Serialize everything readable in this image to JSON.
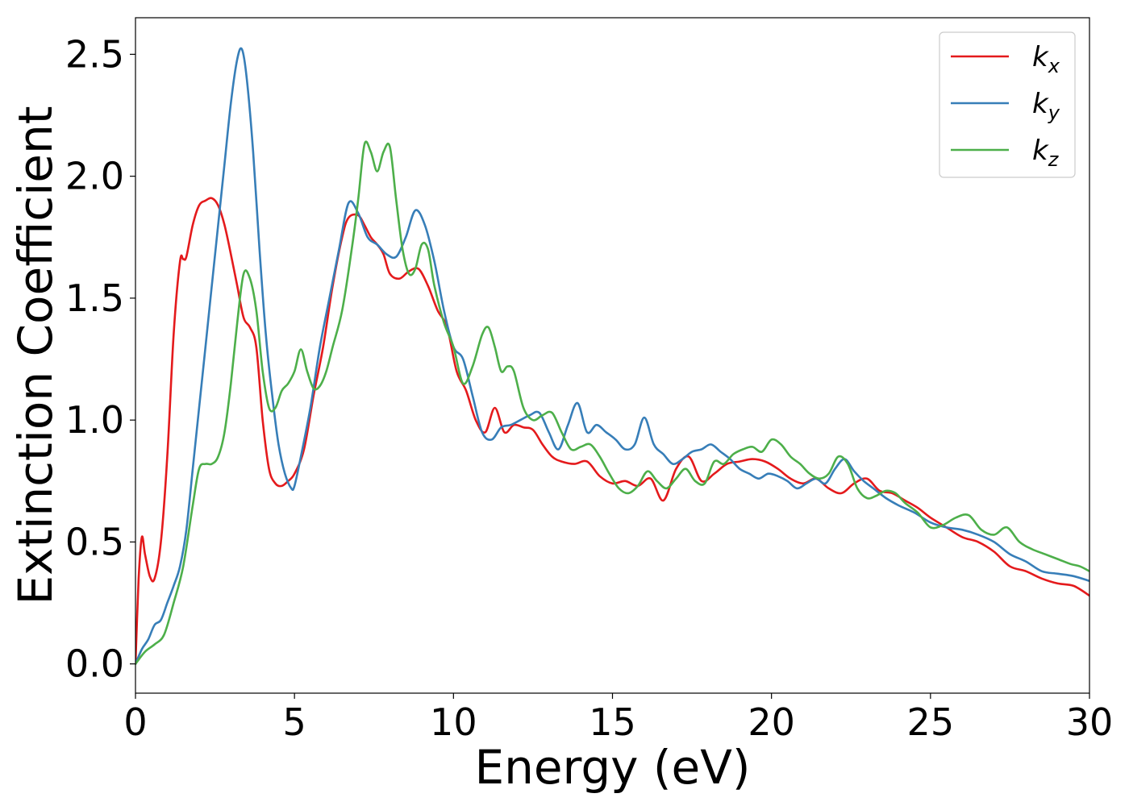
{
  "chart_data": {
    "type": "line",
    "title": "",
    "xlabel": "Energy (eV)",
    "ylabel": "Extinction Coefficient",
    "xlim": [
      0,
      30
    ],
    "ylim": [
      -0.12,
      2.65
    ],
    "xticks": [
      0,
      5,
      10,
      15,
      20,
      25,
      30
    ],
    "yticks": [
      0.0,
      0.5,
      1.0,
      1.5,
      2.0,
      2.5
    ],
    "xtick_labels": [
      "0",
      "5",
      "10",
      "15",
      "20",
      "25",
      "30"
    ],
    "ytick_labels": [
      "0.0",
      "0.5",
      "1.0",
      "1.5",
      "2.0",
      "2.5"
    ],
    "grid": false,
    "legend_position": "top-right",
    "series": [
      {
        "name": "k_x",
        "label_base": "k",
        "label_sub": "x",
        "color": "#e41a1c",
        "x": [
          0,
          0.1,
          0.2,
          0.3,
          0.45,
          0.6,
          0.8,
          1.0,
          1.2,
          1.4,
          1.5,
          1.6,
          1.8,
          2.0,
          2.2,
          2.4,
          2.6,
          2.8,
          3.0,
          3.2,
          3.4,
          3.6,
          3.8,
          4.0,
          4.2,
          4.4,
          4.6,
          4.8,
          5.0,
          5.3,
          5.6,
          5.9,
          6.2,
          6.5,
          6.7,
          7.0,
          7.2,
          7.4,
          7.6,
          7.8,
          8.0,
          8.3,
          8.6,
          8.9,
          9.2,
          9.5,
          9.8,
          10.1,
          10.4,
          10.7,
          11.0,
          11.3,
          11.6,
          11.9,
          12.2,
          12.5,
          12.8,
          13.1,
          13.4,
          13.8,
          14.2,
          14.6,
          15.0,
          15.4,
          15.8,
          16.2,
          16.6,
          17.0,
          17.4,
          17.8,
          18.2,
          18.6,
          19.0,
          19.4,
          19.8,
          20.2,
          20.6,
          21.0,
          21.4,
          21.8,
          22.2,
          22.6,
          23.0,
          23.4,
          23.8,
          24.2,
          24.6,
          25.0,
          25.5,
          26.0,
          26.5,
          27.0,
          27.5,
          28.0,
          28.5,
          29.0,
          29.5,
          30.0
        ],
        "y": [
          0.0,
          0.35,
          0.52,
          0.45,
          0.36,
          0.35,
          0.5,
          0.85,
          1.35,
          1.65,
          1.66,
          1.67,
          1.8,
          1.88,
          1.9,
          1.91,
          1.88,
          1.8,
          1.68,
          1.55,
          1.42,
          1.38,
          1.3,
          1.0,
          0.8,
          0.74,
          0.73,
          0.75,
          0.78,
          0.88,
          1.1,
          1.3,
          1.55,
          1.75,
          1.83,
          1.84,
          1.8,
          1.75,
          1.72,
          1.68,
          1.6,
          1.58,
          1.61,
          1.62,
          1.55,
          1.45,
          1.38,
          1.2,
          1.12,
          1.0,
          0.95,
          1.05,
          0.95,
          0.98,
          0.97,
          0.96,
          0.9,
          0.85,
          0.83,
          0.82,
          0.83,
          0.77,
          0.74,
          0.75,
          0.73,
          0.76,
          0.67,
          0.8,
          0.85,
          0.75,
          0.78,
          0.82,
          0.83,
          0.84,
          0.83,
          0.8,
          0.76,
          0.74,
          0.76,
          0.72,
          0.7,
          0.74,
          0.76,
          0.71,
          0.7,
          0.67,
          0.64,
          0.6,
          0.56,
          0.52,
          0.5,
          0.46,
          0.4,
          0.38,
          0.35,
          0.33,
          0.32,
          0.28
        ]
      },
      {
        "name": "k_y",
        "label_base": "k",
        "label_sub": "y",
        "color": "#377eb8",
        "x": [
          0,
          0.2,
          0.4,
          0.6,
          0.8,
          1.0,
          1.2,
          1.4,
          1.6,
          1.8,
          2.0,
          2.2,
          2.4,
          2.6,
          2.8,
          3.0,
          3.2,
          3.35,
          3.5,
          3.7,
          3.9,
          4.1,
          4.3,
          4.5,
          4.7,
          4.9,
          5.0,
          5.2,
          5.5,
          5.8,
          6.1,
          6.4,
          6.7,
          7.0,
          7.3,
          7.6,
          7.9,
          8.2,
          8.5,
          8.8,
          9.1,
          9.4,
          9.7,
          10.0,
          10.3,
          10.6,
          10.9,
          11.2,
          11.5,
          11.8,
          12.1,
          12.4,
          12.7,
          13.0,
          13.3,
          13.6,
          13.9,
          14.2,
          14.5,
          14.8,
          15.1,
          15.4,
          15.7,
          16.0,
          16.3,
          16.6,
          16.9,
          17.2,
          17.5,
          17.8,
          18.1,
          18.4,
          18.7,
          19.0,
          19.3,
          19.6,
          19.9,
          20.2,
          20.5,
          20.8,
          21.1,
          21.4,
          21.7,
          22.0,
          22.3,
          22.6,
          22.9,
          23.2,
          23.6,
          24.0,
          24.5,
          25.0,
          25.5,
          26.0,
          26.5,
          27.0,
          27.5,
          28.0,
          28.5,
          29.0,
          29.5,
          30.0
        ],
        "y": [
          0.0,
          0.06,
          0.1,
          0.16,
          0.18,
          0.25,
          0.32,
          0.4,
          0.55,
          0.8,
          1.05,
          1.3,
          1.55,
          1.8,
          2.05,
          2.3,
          2.48,
          2.52,
          2.4,
          2.1,
          1.7,
          1.35,
          1.1,
          0.9,
          0.78,
          0.72,
          0.73,
          0.85,
          1.05,
          1.3,
          1.5,
          1.7,
          1.89,
          1.85,
          1.75,
          1.72,
          1.68,
          1.67,
          1.75,
          1.86,
          1.8,
          1.65,
          1.45,
          1.3,
          1.25,
          1.1,
          0.95,
          0.92,
          0.97,
          0.98,
          1.0,
          1.02,
          1.03,
          0.95,
          0.88,
          0.98,
          1.07,
          0.95,
          0.98,
          0.95,
          0.92,
          0.88,
          0.9,
          1.01,
          0.9,
          0.86,
          0.82,
          0.84,
          0.87,
          0.88,
          0.9,
          0.87,
          0.84,
          0.8,
          0.78,
          0.76,
          0.78,
          0.77,
          0.75,
          0.72,
          0.74,
          0.76,
          0.74,
          0.8,
          0.84,
          0.79,
          0.75,
          0.72,
          0.68,
          0.65,
          0.62,
          0.58,
          0.56,
          0.55,
          0.53,
          0.5,
          0.45,
          0.42,
          0.38,
          0.37,
          0.36,
          0.34
        ]
      },
      {
        "name": "k_z",
        "label_base": "k",
        "label_sub": "z",
        "color": "#4daf4a",
        "x": [
          0,
          0.3,
          0.6,
          0.9,
          1.2,
          1.5,
          1.8,
          2.0,
          2.2,
          2.4,
          2.6,
          2.8,
          3.0,
          3.2,
          3.4,
          3.6,
          3.8,
          4.0,
          4.2,
          4.4,
          4.6,
          4.8,
          5.0,
          5.2,
          5.4,
          5.6,
          5.8,
          6.0,
          6.2,
          6.5,
          6.8,
          7.0,
          7.2,
          7.4,
          7.6,
          7.8,
          8.0,
          8.2,
          8.4,
          8.6,
          8.8,
          9.0,
          9.2,
          9.4,
          9.7,
          10.0,
          10.3,
          10.6,
          10.9,
          11.1,
          11.3,
          11.5,
          11.7,
          11.9,
          12.2,
          12.5,
          12.8,
          13.1,
          13.4,
          13.7,
          14.0,
          14.3,
          14.6,
          14.9,
          15.2,
          15.5,
          15.8,
          16.1,
          16.4,
          16.7,
          17.0,
          17.3,
          17.6,
          17.9,
          18.2,
          18.5,
          18.8,
          19.1,
          19.4,
          19.7,
          20.0,
          20.3,
          20.6,
          20.9,
          21.2,
          21.5,
          21.8,
          22.1,
          22.4,
          22.7,
          23.0,
          23.3,
          23.6,
          23.9,
          24.2,
          24.6,
          25.0,
          25.4,
          25.8,
          26.2,
          26.6,
          27.0,
          27.4,
          27.8,
          28.2,
          28.6,
          29.0,
          29.4,
          29.7,
          30.0
        ],
        "y": [
          0.0,
          0.05,
          0.08,
          0.12,
          0.25,
          0.4,
          0.65,
          0.8,
          0.82,
          0.82,
          0.85,
          0.95,
          1.15,
          1.4,
          1.6,
          1.58,
          1.45,
          1.2,
          1.05,
          1.05,
          1.12,
          1.15,
          1.2,
          1.29,
          1.2,
          1.13,
          1.14,
          1.2,
          1.3,
          1.45,
          1.7,
          1.9,
          2.13,
          2.1,
          2.02,
          2.1,
          2.12,
          1.9,
          1.7,
          1.6,
          1.62,
          1.72,
          1.7,
          1.55,
          1.4,
          1.3,
          1.15,
          1.22,
          1.35,
          1.38,
          1.3,
          1.2,
          1.22,
          1.2,
          1.05,
          1.0,
          1.02,
          1.03,
          0.95,
          0.88,
          0.89,
          0.9,
          0.85,
          0.78,
          0.72,
          0.7,
          0.73,
          0.79,
          0.75,
          0.72,
          0.76,
          0.8,
          0.75,
          0.74,
          0.83,
          0.82,
          0.86,
          0.88,
          0.89,
          0.87,
          0.92,
          0.9,
          0.85,
          0.82,
          0.78,
          0.76,
          0.78,
          0.85,
          0.82,
          0.72,
          0.68,
          0.69,
          0.71,
          0.7,
          0.66,
          0.62,
          0.56,
          0.57,
          0.6,
          0.61,
          0.55,
          0.53,
          0.56,
          0.5,
          0.47,
          0.45,
          0.43,
          0.41,
          0.4,
          0.38
        ]
      }
    ]
  }
}
